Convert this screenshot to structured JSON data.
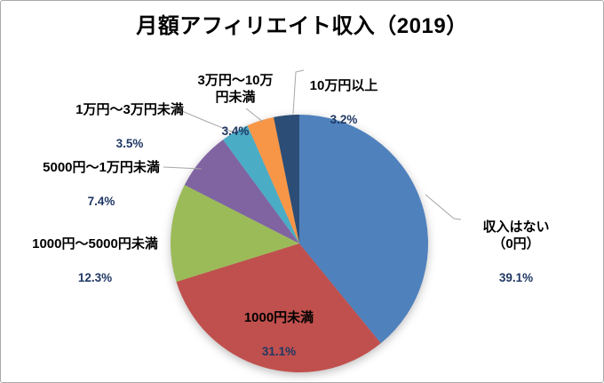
{
  "title": "月額アフィリエイト収入（2019）",
  "chart_data": {
    "type": "pie",
    "title": "月額アフィリエイト収入（2019）",
    "direction": "clockwise",
    "start_angle_deg": 0,
    "labels": [
      "収入はない（0円）",
      "1000円未満",
      "1000円～5000円未満",
      "5000円～1万円未満",
      "1万円～3万円未満",
      "3万円～10万円未満",
      "10万円以上"
    ],
    "values": [
      39.1,
      31.1,
      12.3,
      7.4,
      3.5,
      3.4,
      3.2
    ],
    "unit": "%",
    "colors": [
      "#4F81BD",
      "#C0504D",
      "#9BBB59",
      "#8064A2",
      "#4BACC6",
      "#F79646",
      "#2C4D75"
    ],
    "legend": "none",
    "data_label_style": "category name + percentage, outside with gray leader lines; largest red slice labeled inside"
  },
  "callouts": [
    {
      "id": "none",
      "text": "収入はない（0円）",
      "pct": "39.1%"
    },
    {
      "id": "under1000",
      "text": "1000円未満",
      "pct": "31.1%"
    },
    {
      "id": "k1to5",
      "text": "1000円～5000円未満",
      "pct": "12.3%"
    },
    {
      "id": "k5to10",
      "text": "5000円～1万円未満",
      "pct": "7.4%"
    },
    {
      "id": "m1to3",
      "text": "1万円～3万円未満",
      "pct": "3.5%"
    },
    {
      "id": "m3to10",
      "text": "3万円～10万\n円未満",
      "pct": "3.4%"
    },
    {
      "id": "over100k",
      "text": "10万円以上",
      "pct": "3.2%"
    }
  ]
}
